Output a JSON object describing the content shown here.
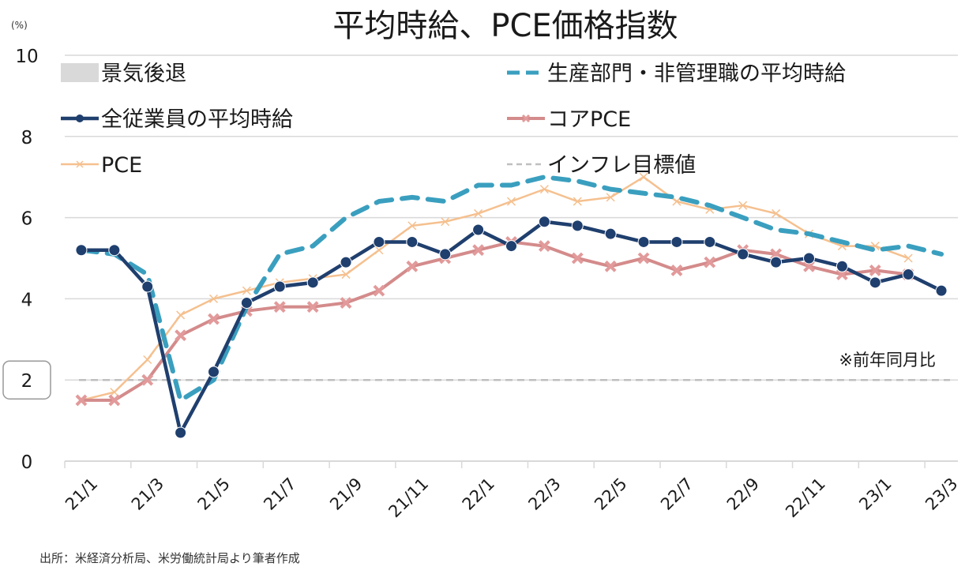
{
  "title": "平均時給、PCE価格指数",
  "unit_label": "(%)",
  "note": "※前年同月比",
  "source": "出所：米経済分析局、米労働統計局より筆者作成",
  "colors": {
    "all_employees": "#1f3f6e",
    "production": "#3a9fbf",
    "core_pce": "#d48b8b",
    "pce": "#f5c08f",
    "target": "#bfbfbf",
    "recession": "#d9d9d9",
    "grid": "#d9d9d9"
  },
  "legend": [
    {
      "key": "recession",
      "label": "景気後退"
    },
    {
      "key": "production",
      "label": "生産部門・非管理職の平均時給"
    },
    {
      "key": "all_employees",
      "label": "全従業員の平均時給"
    },
    {
      "key": "core_pce",
      "label": "コアPCE"
    },
    {
      "key": "pce",
      "label": "PCE"
    },
    {
      "key": "target",
      "label": "インフレ目標値"
    }
  ],
  "chart_data": {
    "type": "line",
    "title": "平均時給、PCE価格指数",
    "xlabel": "",
    "ylabel": "(%)",
    "ylim": [
      0,
      10
    ],
    "yticks": [
      0,
      2,
      4,
      6,
      8,
      10
    ],
    "highlighted_ytick": 2,
    "grid": true,
    "legend_position": "top-inside",
    "x": [
      "21/1",
      "21/2",
      "21/3",
      "21/4",
      "21/5",
      "21/6",
      "21/7",
      "21/8",
      "21/9",
      "21/10",
      "21/11",
      "21/12",
      "22/1",
      "22/2",
      "22/3",
      "22/4",
      "22/5",
      "22/6",
      "22/7",
      "22/8",
      "22/9",
      "22/10",
      "22/11",
      "22/12",
      "23/1",
      "23/2",
      "23/3"
    ],
    "xtick_labels": [
      "21/1",
      "21/3",
      "21/5",
      "21/7",
      "21/9",
      "21/11",
      "22/1",
      "22/3",
      "22/5",
      "22/7",
      "22/9",
      "22/11",
      "23/1",
      "23/3"
    ],
    "series": [
      {
        "name": "生産部門・非管理職の平均時給",
        "key": "production",
        "style": "dashed",
        "values": [
          5.2,
          5.1,
          4.6,
          1.5,
          2.0,
          3.8,
          5.1,
          5.3,
          6.0,
          6.4,
          6.5,
          6.4,
          6.8,
          6.8,
          7.0,
          6.9,
          6.7,
          6.6,
          6.5,
          6.3,
          6.0,
          5.7,
          5.6,
          5.4,
          5.2,
          5.3,
          5.1
        ]
      },
      {
        "name": "全従業員の平均時給",
        "key": "all_employees",
        "style": "solid-circle",
        "values": [
          5.2,
          5.2,
          4.3,
          0.7,
          2.2,
          3.9,
          4.3,
          4.4,
          4.9,
          5.4,
          5.4,
          5.1,
          5.7,
          5.3,
          5.9,
          5.8,
          5.6,
          5.4,
          5.4,
          5.4,
          5.1,
          4.9,
          5.0,
          4.8,
          4.4,
          4.6,
          4.2
        ]
      },
      {
        "name": "コアPCE",
        "key": "core_pce",
        "style": "solid-x",
        "values": [
          1.5,
          1.5,
          2.0,
          3.1,
          3.5,
          3.7,
          3.8,
          3.8,
          3.9,
          4.2,
          4.8,
          5.0,
          5.2,
          5.4,
          5.3,
          5.0,
          4.8,
          5.0,
          4.7,
          4.9,
          5.2,
          5.1,
          4.8,
          4.6,
          4.7,
          4.6,
          null
        ]
      },
      {
        "name": "PCE",
        "key": "pce",
        "style": "thin-x",
        "values": [
          1.5,
          1.7,
          2.5,
          3.6,
          4.0,
          4.2,
          4.4,
          4.5,
          4.6,
          5.2,
          5.8,
          5.9,
          6.1,
          6.4,
          6.7,
          6.4,
          6.5,
          7.0,
          6.4,
          6.2,
          6.3,
          6.1,
          5.6,
          5.3,
          5.3,
          5.0,
          null
        ]
      },
      {
        "name": "インフレ目標値",
        "key": "target",
        "style": "dotted",
        "values": [
          2,
          2,
          2,
          2,
          2,
          2,
          2,
          2,
          2,
          2,
          2,
          2,
          2,
          2,
          2,
          2,
          2,
          2,
          2,
          2,
          2,
          2,
          2,
          2,
          2,
          2,
          2
        ]
      }
    ],
    "annotations": [
      "※前年同月比"
    ]
  }
}
